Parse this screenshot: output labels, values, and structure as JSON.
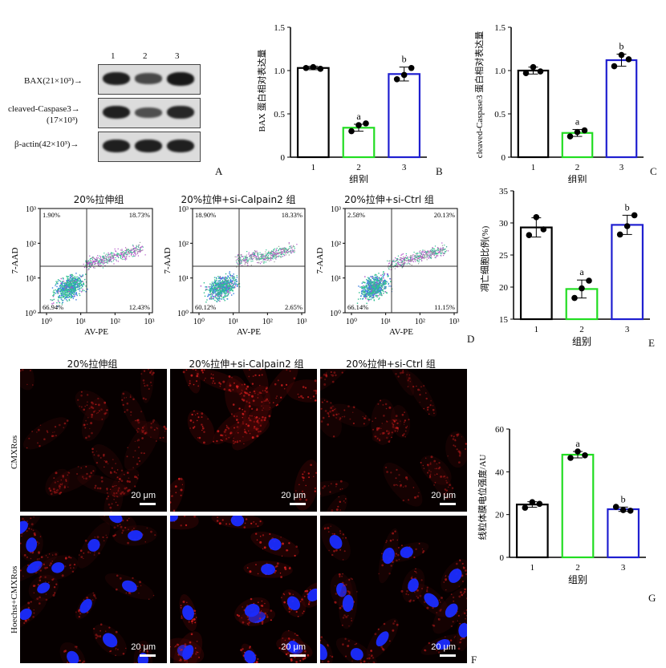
{
  "panel_letters": {
    "A": "A",
    "B": "B",
    "C": "C",
    "D": "D",
    "E": "E",
    "F": "F",
    "G": "G"
  },
  "western_blot": {
    "lanes": [
      "1",
      "2",
      "3"
    ],
    "rows": [
      {
        "label": "BAX(21×10³)→",
        "label2": "",
        "intensities": [
          0.85,
          0.55,
          0.9
        ]
      },
      {
        "label": "cleaved-Caspase3→",
        "label2": "(17×10³)",
        "intensities": [
          0.85,
          0.5,
          0.8
        ]
      },
      {
        "label": "β-actin(42×10³)→",
        "label2": "",
        "intensities": [
          0.85,
          0.85,
          0.85
        ]
      }
    ]
  },
  "flow": {
    "titles": [
      "20%拉伸组",
      "20%拉伸+si-Calpain2 组",
      "20%拉伸+si-Ctrl 组"
    ],
    "xlabel": "AV-PE",
    "ylabel": "7-AAD",
    "x_ticks": [
      "10⁰",
      "10¹",
      "10²",
      "10³"
    ],
    "y_ticks": [
      "10³",
      "10²",
      "10¹",
      "10⁰"
    ],
    "plots": [
      {
        "ul": "1.90%",
        "ur": "18.73%",
        "ll": "66.94%",
        "lr": "12.43%"
      },
      {
        "ul": "18.90%",
        "ur": "18.33%",
        "ll": "60.12%",
        "lr": "2.65%"
      },
      {
        "ul": "2.58%",
        "ur": "20.13%",
        "ll": "66.14%",
        "lr": "11.15%"
      }
    ]
  },
  "micro": {
    "titles": [
      "20%拉伸组",
      "20%拉伸+si-Calpain2 组",
      "20%拉伸+si-Ctrl 组"
    ],
    "row_labels": [
      "CMXRos",
      "Hoechst+CMXRos"
    ],
    "scale_label": "20 μm"
  },
  "chart_data": [
    {
      "type": "bar",
      "panel": "B",
      "categories": [
        "1",
        "2",
        "3"
      ],
      "values": [
        1.03,
        0.34,
        0.96
      ],
      "points": [
        [
          1.03,
          1.04,
          1.02
        ],
        [
          0.3,
          0.37,
          0.39
        ],
        [
          0.9,
          0.95,
          1.03
        ]
      ],
      "errors": [
        0.02,
        0.04,
        0.08
      ],
      "letters": [
        "",
        "a",
        "b"
      ],
      "colors": [
        "#000000",
        "#22dd22",
        "#1f1fd0"
      ],
      "xlabel": "组别",
      "ylabel": "BAX 蛋白相对表达量",
      "ylim": [
        0,
        1.5
      ],
      "yticks": [
        0,
        0.5,
        1.0,
        1.5
      ],
      "ytick_labels": [
        "0",
        "0.5",
        "1.0",
        "1.5"
      ]
    },
    {
      "type": "bar",
      "panel": "C",
      "categories": [
        "1",
        "2",
        "3"
      ],
      "values": [
        1.0,
        0.28,
        1.12
      ],
      "points": [
        [
          0.97,
          1.04,
          0.99
        ],
        [
          0.24,
          0.29,
          0.31
        ],
        [
          1.05,
          1.18,
          1.13
        ]
      ],
      "errors": [
        0.04,
        0.04,
        0.07
      ],
      "letters": [
        "",
        "a",
        "b"
      ],
      "colors": [
        "#000000",
        "#22dd22",
        "#1f1fd0"
      ],
      "xlabel": "组别",
      "ylabel": "cleaved-Caspase3 蛋白相对表达量",
      "ylim": [
        0,
        1.5
      ],
      "yticks": [
        0,
        0.5,
        1.0,
        1.5
      ],
      "ytick_labels": [
        "0",
        "0.5",
        "1.0",
        "1.5"
      ]
    },
    {
      "type": "bar",
      "panel": "E",
      "categories": [
        "1",
        "2",
        "3"
      ],
      "values": [
        29.3,
        19.7,
        29.7
      ],
      "points": [
        [
          28.1,
          30.9,
          29.0
        ],
        [
          18.3,
          19.8,
          21.0
        ],
        [
          28.2,
          29.5,
          31.2
        ]
      ],
      "errors": [
        1.5,
        1.4,
        1.5
      ],
      "letters": [
        "",
        "a",
        "b"
      ],
      "colors": [
        "#000000",
        "#22dd22",
        "#1f1fd0"
      ],
      "xlabel": "组别",
      "ylabel": "凋亡细胞比例(%)",
      "ylim": [
        15,
        35
      ],
      "yticks": [
        15,
        20,
        25,
        30,
        35
      ],
      "ytick_labels": [
        "15",
        "20",
        "25",
        "30",
        "35"
      ]
    },
    {
      "type": "bar",
      "panel": "G",
      "categories": [
        "1",
        "2",
        "3"
      ],
      "values": [
        24.7,
        48.0,
        22.5
      ],
      "points": [
        [
          23.2,
          25.8,
          25.0
        ],
        [
          46.5,
          49.5,
          47.7
        ],
        [
          23.6,
          22.1,
          21.8
        ]
      ],
      "errors": [
        1.3,
        1.5,
        1.0
      ],
      "letters": [
        "",
        "a",
        "b"
      ],
      "colors": [
        "#000000",
        "#22dd22",
        "#1f1fd0"
      ],
      "xlabel": "组别",
      "ylabel": "线粒体膜电位强度/AU",
      "ylim": [
        0,
        60
      ],
      "yticks": [
        0,
        20,
        40,
        60
      ],
      "ytick_labels": [
        "0",
        "20",
        "40",
        "60"
      ]
    }
  ]
}
